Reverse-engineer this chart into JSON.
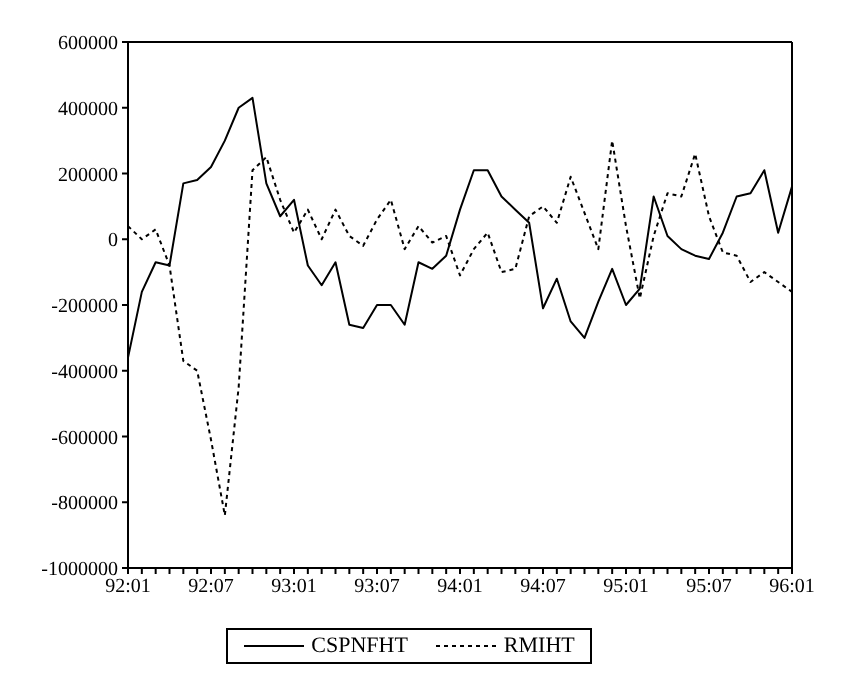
{
  "chart_data": {
    "type": "line",
    "categories": [
      "92:01",
      null,
      null,
      null,
      null,
      null,
      "92:07",
      null,
      null,
      null,
      null,
      null,
      "93:01",
      null,
      null,
      null,
      null,
      null,
      "93:07",
      null,
      null,
      null,
      null,
      null,
      "94:01",
      null,
      null,
      null,
      null,
      null,
      "94:07",
      null,
      null,
      null,
      null,
      null,
      "95:01",
      null,
      null,
      null,
      null,
      null,
      "95:07",
      null,
      null,
      null,
      null,
      null,
      "96:01"
    ],
    "series": [
      {
        "name": "CSPNFHT",
        "color": "#000000",
        "line_style": "solid",
        "values": [
          -360000,
          -160000,
          -70000,
          -80000,
          170000,
          180000,
          220000,
          300000,
          400000,
          430000,
          170000,
          70000,
          120000,
          -80000,
          -140000,
          -70000,
          -260000,
          -270000,
          -200000,
          -200000,
          -260000,
          -70000,
          -90000,
          -50000,
          90000,
          210000,
          210000,
          130000,
          90000,
          50000,
          -210000,
          -120000,
          -250000,
          -300000,
          -190000,
          -90000,
          -200000,
          -150000,
          130000,
          10000,
          -30000,
          -50000,
          -60000,
          20000,
          130000,
          140000,
          210000,
          20000,
          160000
        ]
      },
      {
        "name": "RMIHT",
        "color": "#000000",
        "line_style": "dotted",
        "values": [
          40000,
          0,
          30000,
          -80000,
          -370000,
          -400000,
          -610000,
          -840000,
          -450000,
          210000,
          250000,
          120000,
          20000,
          90000,
          0,
          90000,
          10000,
          -20000,
          60000,
          120000,
          -30000,
          40000,
          -10000,
          10000,
          -110000,
          -30000,
          20000,
          -100000,
          -90000,
          70000,
          100000,
          50000,
          190000,
          80000,
          -30000,
          300000,
          40000,
          -180000,
          10000,
          140000,
          130000,
          260000,
          70000,
          -40000,
          -50000,
          -130000,
          -100000,
          -130000,
          -160000
        ]
      }
    ],
    "ylim": [
      -1000000,
      600000
    ],
    "yticks": [
      -1000000,
      -800000,
      -600000,
      -400000,
      -200000,
      0,
      200000,
      400000,
      600000
    ],
    "grid": false,
    "legend": "bottom",
    "marker": "none"
  }
}
